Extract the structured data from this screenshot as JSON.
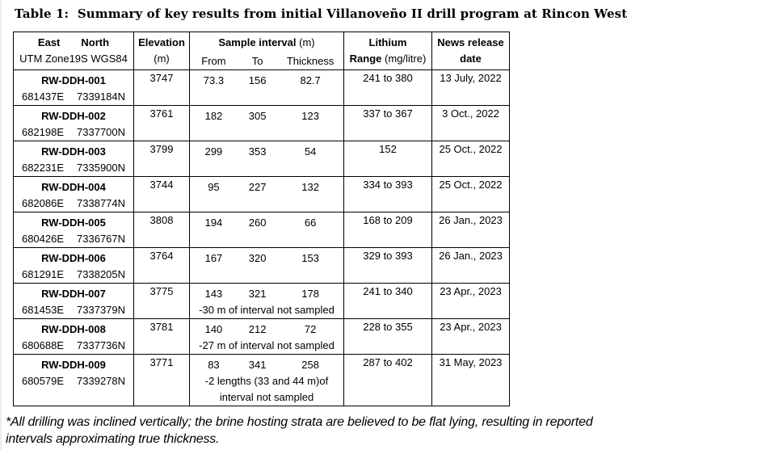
{
  "title": "Table 1:  Summary of key results from initial Villanoveño II drill program at Rincon West",
  "colors": {
    "text": "#000000",
    "table_border": "#000000",
    "page_background": "#ffffff",
    "page_left_edge": "#ececec"
  },
  "table": {
    "header": {
      "east": "East",
      "north": "North",
      "datum": "UTM Zone19S WGS84",
      "elevation": "Elevation",
      "elevation_unit": "(m)",
      "sample_interval": "Sample interval",
      "sample_interval_unit": "(m)",
      "from": "From",
      "to": "To",
      "thickness": "Thickness",
      "lithium": "Lithium",
      "range": "Range",
      "range_unit": "(mg/litre)",
      "news_release": "News release",
      "date": "date"
    },
    "rows": [
      {
        "hole": "RW-DDH-001",
        "east": "681437E",
        "north": "7339184N",
        "elevation": "3747",
        "from": "73.3",
        "to": "156",
        "thickness": "82.7",
        "lithium": "241 to 380",
        "date": "13 July, 2022",
        "notes": []
      },
      {
        "hole": "RW-DDH-002",
        "east": "682198E",
        "north": "7337700N",
        "elevation": "3761",
        "from": "182",
        "to": "305",
        "thickness": "123",
        "lithium": "337 to 367",
        "date": "3 Oct., 2022",
        "notes": []
      },
      {
        "hole": "RW-DDH-003",
        "east": "682231E",
        "north": "7335900N",
        "elevation": "3799",
        "from": "299",
        "to": "353",
        "thickness": "54",
        "lithium": "152",
        "date": "25 Oct., 2022",
        "notes": []
      },
      {
        "hole": "RW-DDH-004",
        "east": "682086E",
        "north": "7338774N",
        "elevation": "3744",
        "from": "95",
        "to": "227",
        "thickness": "132",
        "lithium": "334 to 393",
        "date": "25 Oct., 2022",
        "notes": []
      },
      {
        "hole": "RW-DDH-005",
        "east": "680426E",
        "north": "7336767N",
        "elevation": "3808",
        "from": "194",
        "to": "260",
        "thickness": "66",
        "lithium": "168 to 209",
        "date": "26 Jan., 2023",
        "notes": []
      },
      {
        "hole": "RW-DDH-006",
        "east": "681291E",
        "north": "7338205N",
        "elevation": "3764",
        "from": "167",
        "to": "320",
        "thickness": "153",
        "lithium": "329 to 393",
        "date": "26 Jan., 2023",
        "notes": []
      },
      {
        "hole": "RW-DDH-007",
        "east": "681453E",
        "north": "7337379N",
        "elevation": "3775",
        "from": "143",
        "to": "321",
        "thickness": "178",
        "lithium": "241 to 340",
        "date": "23 Apr., 2023",
        "notes": [
          "-30 m of interval not sampled"
        ]
      },
      {
        "hole": "RW-DDH-008",
        "east": "680688E",
        "north": "7337736N",
        "elevation": "3781",
        "from": "140",
        "to": "212",
        "thickness": "72",
        "lithium": "228 to 355",
        "date": "23 Apr., 2023",
        "notes": [
          "-27 m of interval not sampled"
        ]
      },
      {
        "hole": "RW-DDH-009",
        "east": "680579E",
        "north": "7339278N",
        "elevation": "3771",
        "from": "83",
        "to": "341",
        "thickness": "258",
        "lithium": "287 to 402",
        "date": "31 May, 2023",
        "notes": [
          "-2 lengths (33 and 44 m)of",
          "interval not sampled"
        ]
      }
    ]
  },
  "footnote": {
    "line1": "*All drilling was inclined vertically; the brine hosting strata are believed to be flat lying, resulting in reported",
    "line2": "intervals approximating true thickness."
  }
}
